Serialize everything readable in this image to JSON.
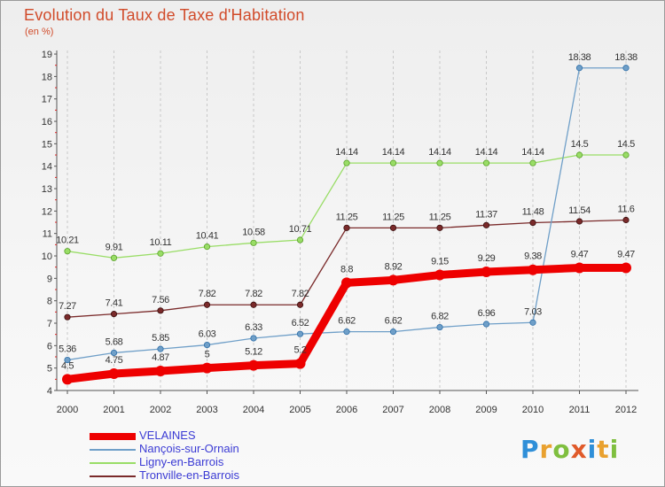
{
  "title": "Evolution du Taux de Taxe d'Habitation",
  "subtitle": "(en %)",
  "logo": {
    "letters": [
      "P",
      "r",
      "o",
      "x",
      "i",
      "t",
      "i"
    ],
    "colors": [
      "#2f8fd8",
      "#e9a12f",
      "#7fbf3f",
      "#e05a2a",
      "#2f8fd8",
      "#e9a12f",
      "#7fbf3f"
    ]
  },
  "chart_data": {
    "type": "line",
    "title": "Evolution du Taux de Taxe d'Habitation",
    "ylabel": "(en %)",
    "xlabel": "",
    "x": [
      "2000",
      "2001",
      "2002",
      "2003",
      "2004",
      "2005",
      "2006",
      "2007",
      "2008",
      "2009",
      "2010",
      "2011",
      "2012"
    ],
    "y_ticks": [
      "4",
      "5",
      "6",
      "7",
      "8",
      "9",
      "10",
      "11",
      "12",
      "13",
      "14",
      "15",
      "16",
      "17",
      "18",
      "19"
    ],
    "ylim": [
      4,
      19
    ],
    "grid": "vertical dashed",
    "legend_position": "bottom-left",
    "series": [
      {
        "name": "VELAINES",
        "color": "#ee0000",
        "values": [
          4.5,
          4.75,
          4.87,
          5,
          5.12,
          5.2,
          8.8,
          8.92,
          9.15,
          9.29,
          9.38,
          9.47,
          9.47
        ],
        "labels": [
          "4.5",
          "4.75",
          "4.87",
          "5",
          "5.12",
          "5.2",
          "8.8",
          "8.92",
          "9.15",
          "9.29",
          "9.38",
          "9.47",
          "9.47"
        ]
      },
      {
        "name": "Nançois-sur-Ornain",
        "color": "#6f9fc8",
        "values": [
          5.36,
          5.68,
          5.85,
          6.03,
          6.33,
          6.52,
          6.62,
          6.62,
          6.82,
          6.96,
          7.03,
          18.38,
          18.38
        ],
        "labels": [
          "5.36",
          "5.68",
          "5.85",
          "6.03",
          "6.33",
          "6.52",
          "6.62",
          "6.62",
          "6.82",
          "6.96",
          "7.03",
          "18.38",
          "18.38"
        ]
      },
      {
        "name": "Ligny-en-Barrois",
        "color": "#99dd66",
        "values": [
          10.21,
          9.91,
          10.11,
          10.41,
          10.58,
          10.71,
          14.14,
          14.14,
          14.14,
          14.14,
          14.14,
          14.5,
          14.5
        ],
        "labels": [
          "10.21",
          "9.91",
          "10.11",
          "10.41",
          "10.58",
          "10.71",
          "14.14",
          "14.14",
          "14.14",
          "14.14",
          "14.14",
          "14.5",
          "14.5"
        ]
      },
      {
        "name": "Tronville-en-Barrois",
        "color": "#7a2a2a",
        "values": [
          7.27,
          7.41,
          7.56,
          7.82,
          7.82,
          7.82,
          11.25,
          11.25,
          11.25,
          11.37,
          11.48,
          11.54,
          11.6
        ],
        "labels": [
          "7.27",
          "7.41",
          "7.56",
          "7.82",
          "7.82",
          "7.82",
          "11.25",
          "11.25",
          "11.25",
          "11.37",
          "11.48",
          "11.54",
          "11.6"
        ]
      }
    ]
  }
}
